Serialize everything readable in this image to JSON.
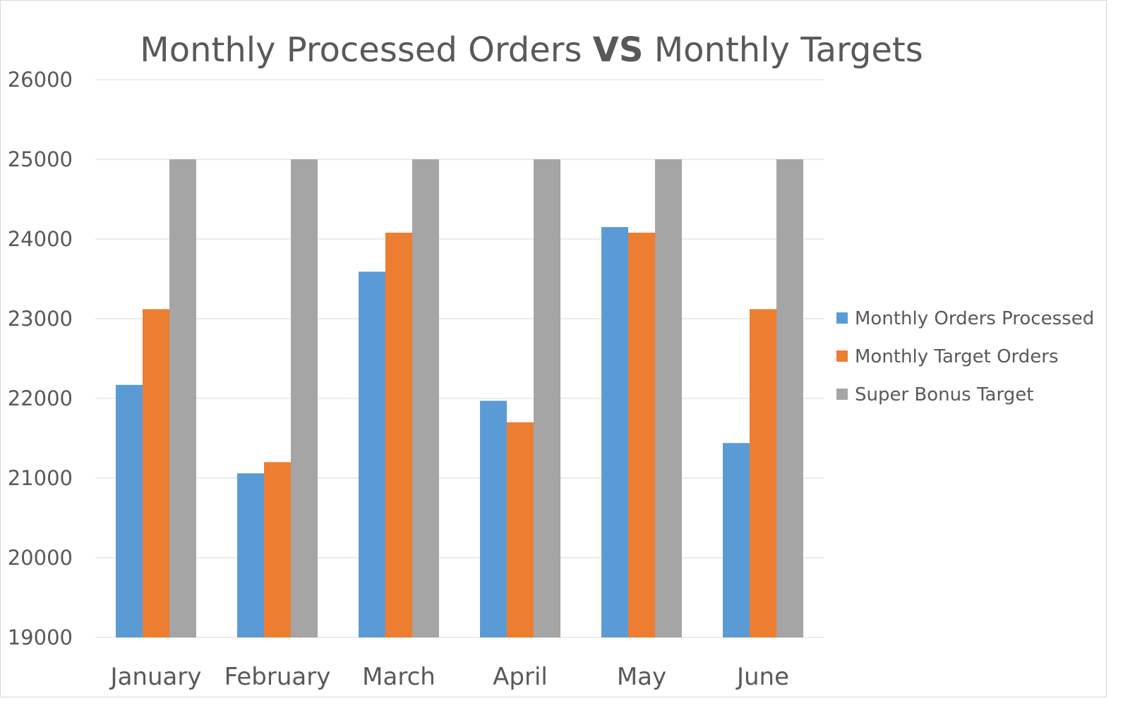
{
  "chart_data": {
    "type": "bar",
    "title": {
      "prefix": "Monthly Processed Orders ",
      "emphasis": "VS",
      "suffix": " Monthly Targets"
    },
    "categories": [
      "January",
      "February",
      "March",
      "April",
      "May",
      "June"
    ],
    "series": [
      {
        "name": "Monthly Orders Processed",
        "color": "#5b9bd5",
        "values": [
          22170,
          21060,
          23590,
          21970,
          24150,
          21440
        ]
      },
      {
        "name": "Monthly Target Orders",
        "color": "#ed7d31",
        "values": [
          23120,
          21200,
          24080,
          21700,
          24080,
          23120
        ]
      },
      {
        "name": "Super Bonus Target",
        "color": "#a5a5a5",
        "values": [
          25000,
          25000,
          25000,
          25000,
          25000,
          25000
        ]
      }
    ],
    "ylim": [
      19000,
      26000
    ],
    "yticks": [
      "19000",
      "20000",
      "21000",
      "22000",
      "23000",
      "24000",
      "25000",
      "26000"
    ],
    "grid": true,
    "legend_position": "right"
  }
}
